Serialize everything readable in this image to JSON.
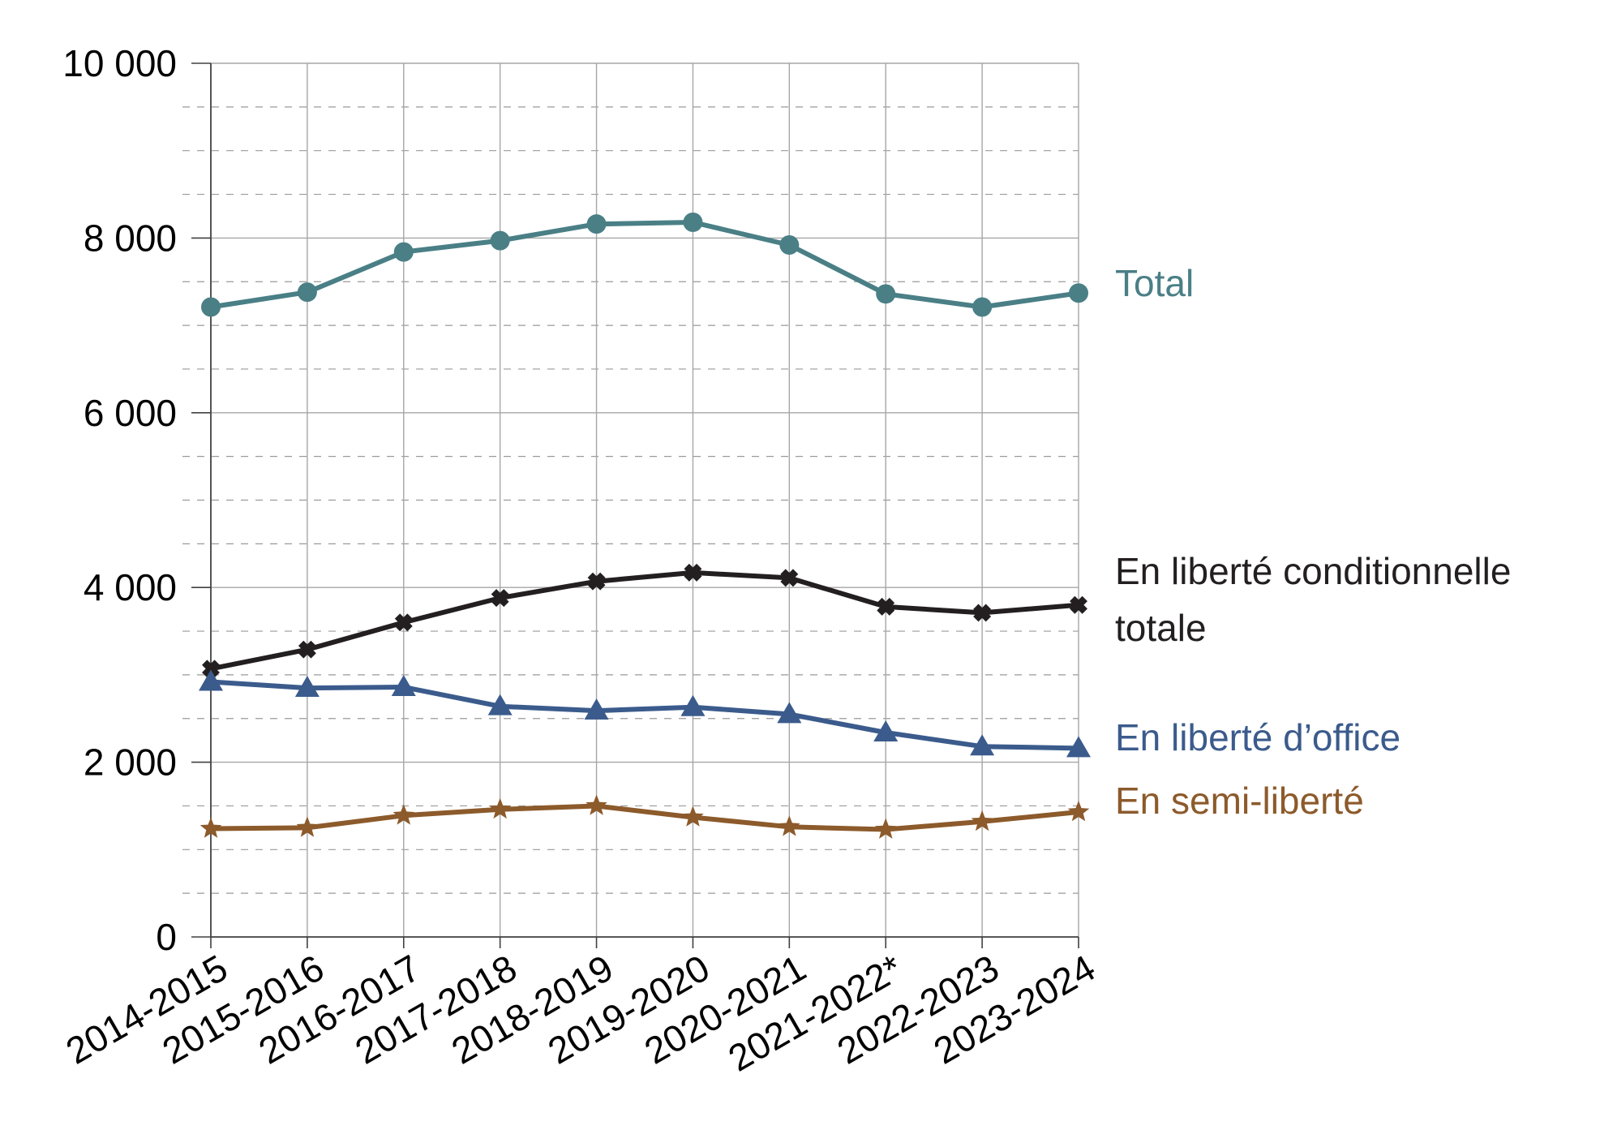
{
  "chart_data": {
    "type": "line",
    "title": "",
    "xlabel": "",
    "ylabel": "",
    "categories": [
      "2014-2015",
      "2015-2016",
      "2016-2017",
      "2017-2018",
      "2018-2019",
      "2019-2020",
      "2020-2021",
      "2021-2022*",
      "2022-2023",
      "2023-2024"
    ],
    "ylim": [
      0,
      10000
    ],
    "yticks": [
      0,
      2000,
      4000,
      6000,
      8000,
      10000
    ],
    "ytick_labels": [
      "0",
      "2 000",
      "4 000",
      "6 000",
      "8 000",
      "10 000"
    ],
    "grid": {
      "major": true,
      "minor_dashed": true
    },
    "legend": "inline-right",
    "series": [
      {
        "name": "Total",
        "label_lines": [
          "Total"
        ],
        "color": "#4a7f86",
        "marker": "circle",
        "values": [
          7210,
          7380,
          7840,
          7970,
          8160,
          8180,
          7920,
          7360,
          7210,
          7370
        ]
      },
      {
        "name": "En liberté conditionnelle totale",
        "label_lines": [
          "En liberté conditionnelle",
          "totale"
        ],
        "color": "#231f20",
        "marker": "cross",
        "values": [
          3070,
          3290,
          3600,
          3880,
          4070,
          4170,
          4110,
          3780,
          3710,
          3800
        ]
      },
      {
        "name": "En liberté d’office",
        "label_lines": [
          "En liberté d’office"
        ],
        "color": "#3b5b8c",
        "marker": "triangle",
        "values": [
          2920,
          2850,
          2860,
          2640,
          2590,
          2630,
          2550,
          2340,
          2180,
          2160
        ]
      },
      {
        "name": "En semi-liberté",
        "label_lines": [
          "En semi-liberté"
        ],
        "color": "#8c5a2b",
        "marker": "star",
        "values": [
          1240,
          1250,
          1390,
          1460,
          1500,
          1370,
          1260,
          1230,
          1320,
          1430
        ]
      }
    ]
  }
}
